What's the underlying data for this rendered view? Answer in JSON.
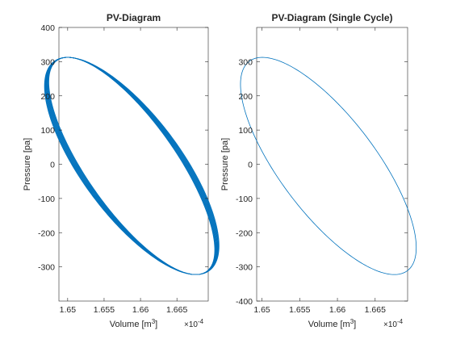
{
  "chart_data": [
    {
      "type": "line",
      "title": "PV-Diagram",
      "xlabel_base": "Volume [m",
      "xlabel_sup": "3",
      "xlabel_end": "]",
      "ylabel": "Pressure [pa]",
      "x_exponent_base": "×10",
      "x_exponent_power": "-4",
      "xlim": [
        1.6488,
        1.6693
      ],
      "ylim": [
        -400,
        400
      ],
      "xticks": [
        1.65,
        1.655,
        1.66,
        1.665
      ],
      "xtick_labels": [
        "1.65",
        "1.655",
        "1.66",
        "1.665"
      ],
      "yticks": [
        -300,
        -200,
        -100,
        0,
        100,
        200,
        300,
        400
      ],
      "ytick_labels": [
        "-300",
        "-200",
        "-100",
        "0",
        "100",
        "200",
        "300",
        "400"
      ],
      "line_color": "#0072BD",
      "cycles": 12,
      "loop_center": [
        1.6588,
        -5
      ],
      "loop_major_axis_start": [
        1.65,
        250
      ],
      "loop_major_axis_end": [
        1.6676,
        -385
      ],
      "loop_half_width": 0.0024,
      "cycle_spread": 0.00028
    },
    {
      "type": "line",
      "title": "PV-Diagram (Single Cycle)",
      "xlabel_base": "Volume [m",
      "xlabel_sup": "3",
      "xlabel_end": "]",
      "ylabel": "Pressure [pa]",
      "x_exponent_base": "×10",
      "x_exponent_power": "-4",
      "xlim": [
        1.6493,
        1.6693
      ],
      "ylim": [
        -400,
        400
      ],
      "xticks": [
        1.65,
        1.655,
        1.66,
        1.665
      ],
      "xtick_labels": [
        "1.65",
        "1.655",
        "1.66",
        "1.665"
      ],
      "yticks": [
        -400,
        -300,
        -200,
        -100,
        0,
        100,
        200,
        300
      ],
      "ytick_labels": [
        "-400",
        "-300",
        "-200",
        "-100",
        "0",
        "100",
        "200",
        "300"
      ],
      "line_color": "#0072BD",
      "cycles": 1,
      "loop_center": [
        1.6588,
        -5
      ],
      "loop_major_axis_start": [
        1.6501,
        250
      ],
      "loop_major_axis_end": [
        1.6676,
        -385
      ],
      "loop_half_width": 0.0024,
      "cycle_spread": 0
    }
  ]
}
